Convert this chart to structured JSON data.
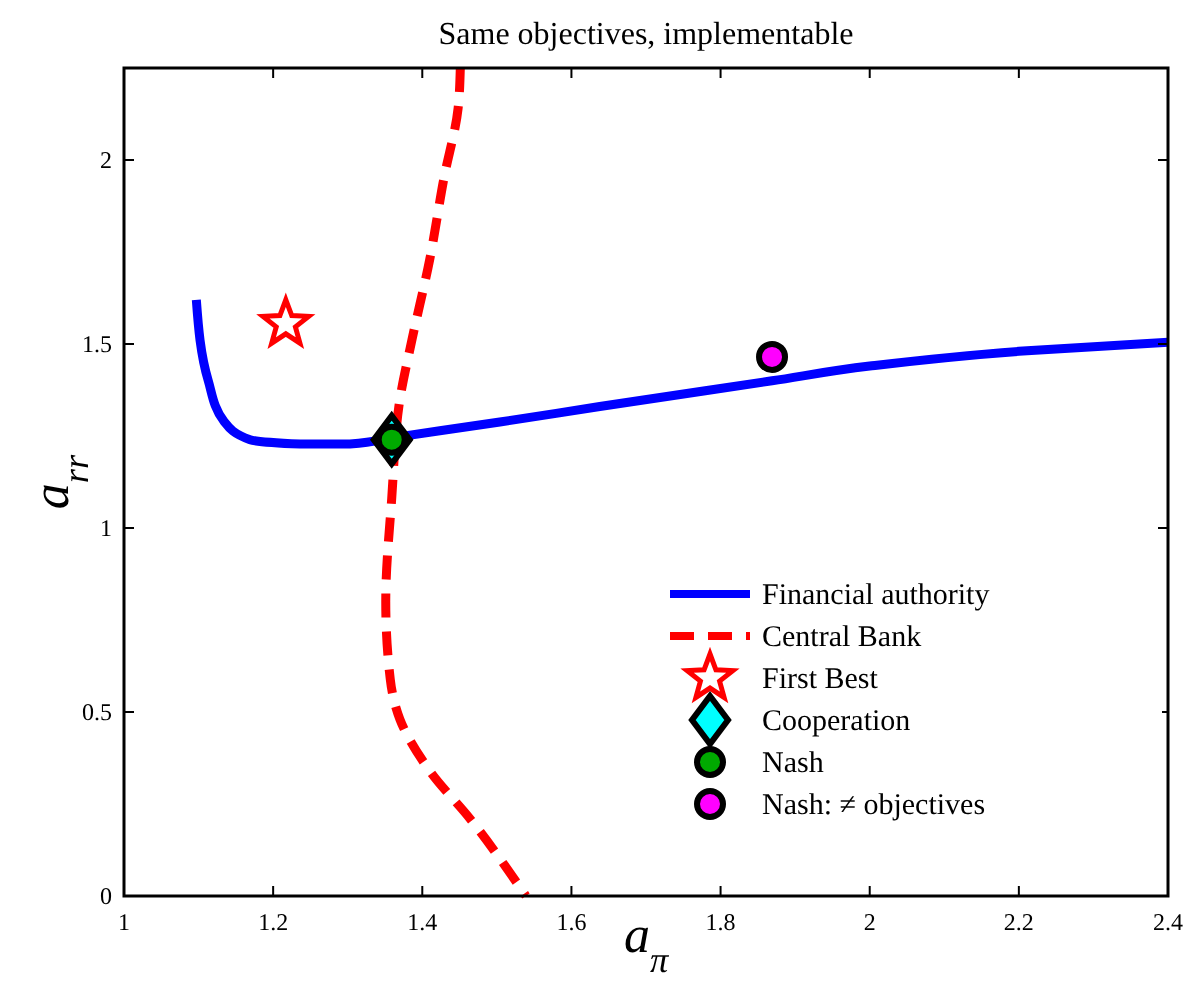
{
  "chart_data": {
    "type": "line",
    "title": "Same objectives, implementable",
    "xlabel": "a$_{π}$",
    "ylabel": "a$_{rr}$",
    "xlim": [
      1,
      2.4
    ],
    "xticks": [
      1,
      1.2,
      1.4,
      1.6,
      1.8,
      2,
      2.2,
      2.4
    ],
    "ylim": [
      0,
      2.25
    ],
    "yticks": [
      0,
      0.5,
      1,
      1.5,
      2
    ],
    "grid": false,
    "legend": "bottom right",
    "series": [
      {
        "name": "Financial authority",
        "line_style": "solid",
        "color": "#0000ff",
        "x": [
          1.097,
          1.113,
          1.134,
          1.169,
          1.236,
          1.303,
          1.359,
          1.504,
          1.638,
          1.869,
          2.0,
          2.2,
          2.4
        ],
        "values": [
          1.62,
          1.4,
          1.29,
          1.24,
          1.228,
          1.228,
          1.245,
          1.288,
          1.33,
          1.4,
          1.44,
          1.48,
          1.505
        ]
      },
      {
        "name": "Central Bank",
        "line_style": "dashed",
        "color": "#ff0000",
        "x": [
          1.451,
          1.448,
          1.429,
          1.41,
          1.386,
          1.37,
          1.359,
          1.351,
          1.357,
          1.37,
          1.41,
          1.464,
          1.539
        ],
        "values": [
          2.25,
          2.14,
          1.95,
          1.73,
          1.51,
          1.35,
          1.08,
          0.8,
          0.59,
          0.48,
          0.34,
          0.21,
          0
        ]
      },
      {
        "name": "First Best",
        "type": "scatter",
        "marker": "star",
        "color": "#ff0000",
        "x": [
          1.217
        ],
        "values": [
          1.555
        ]
      },
      {
        "name": "Cooperation",
        "type": "scatter",
        "marker": "diamond",
        "color": "#00ffff",
        "x": [
          1.359
        ],
        "values": [
          1.24
        ]
      },
      {
        "name": "Nash",
        "type": "scatter",
        "marker": "circle",
        "color": "#00aa00",
        "x": [
          1.359
        ],
        "values": [
          1.24
        ]
      },
      {
        "name": "Nash: ≠ objectives",
        "type": "scatter",
        "marker": "circle",
        "color": "#ff00ff",
        "x": [
          1.869
        ],
        "values": [
          1.465
        ]
      }
    ]
  }
}
